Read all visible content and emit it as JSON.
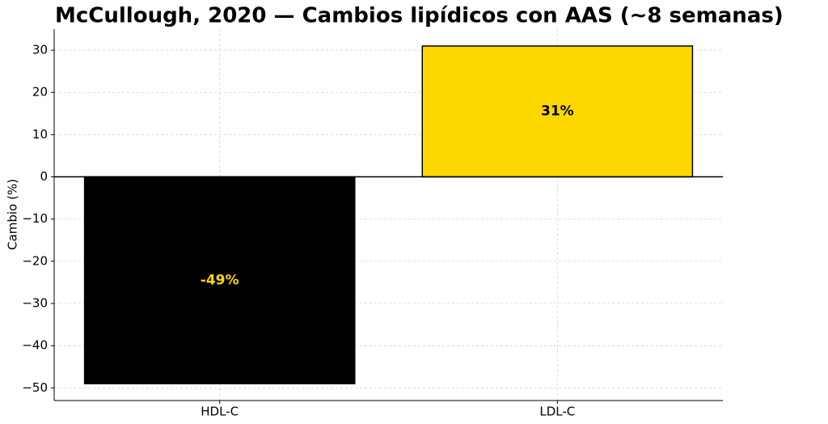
{
  "chart_data": {
    "type": "bar",
    "title": "McCullough, 2020 — Cambios lipídicos con AAS (~8 semanas)",
    "y_label": "Cambio (%)",
    "categories": [
      "HDL-C",
      "LDL-C"
    ],
    "values": [
      -49,
      31
    ],
    "value_labels": [
      "-49%",
      "31%"
    ],
    "colors": [
      "#000000",
      "#FFD700"
    ],
    "label_colors": [
      "#FFD700",
      "#000000"
    ],
    "edge_color": "#000000",
    "ylim": [
      -53,
      35
    ],
    "yticks": [
      {
        "value": -50,
        "label": "−50"
      },
      {
        "value": -40,
        "label": "−40"
      },
      {
        "value": -30,
        "label": "−30"
      },
      {
        "value": -20,
        "label": "−20"
      },
      {
        "value": -10,
        "label": "−10"
      },
      0,
      10,
      20,
      30
    ],
    "grid": true
  }
}
